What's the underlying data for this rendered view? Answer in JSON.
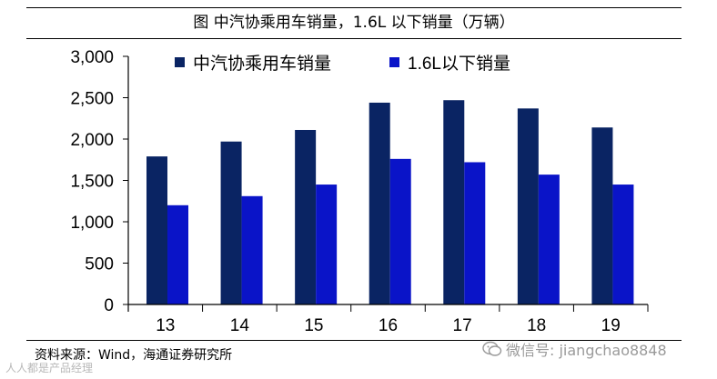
{
  "figure": {
    "title": "图  中汽协乘用车销量，1.6L 以下销量（万辆）",
    "source": "资料来源：Wind，海通证券研究所",
    "watermark": "微信号: jiangchao8848",
    "watermark2": "人人都是产品经理"
  },
  "colors": {
    "series1": "#0a2463",
    "series2": "#0a14c8"
  },
  "chart_data": {
    "type": "bar",
    "title": "中汽协乘用车销量，1.6L 以下销量（万辆）",
    "categories": [
      "13",
      "14",
      "15",
      "16",
      "17",
      "18",
      "19"
    ],
    "series": [
      {
        "name": "中汽协乘用车销量",
        "values": [
          1790,
          1970,
          2110,
          2440,
          2470,
          2370,
          2140
        ]
      },
      {
        "name": "1.6L以下销量",
        "values": [
          1200,
          1310,
          1450,
          1760,
          1720,
          1570,
          1450
        ]
      }
    ],
    "yticks": [
      "0",
      "500",
      "1,000",
      "1,500",
      "2,000",
      "2,500",
      "3,000"
    ],
    "ylim": [
      0,
      3000
    ],
    "xlabel": "",
    "ylabel": "",
    "legend": "top"
  }
}
